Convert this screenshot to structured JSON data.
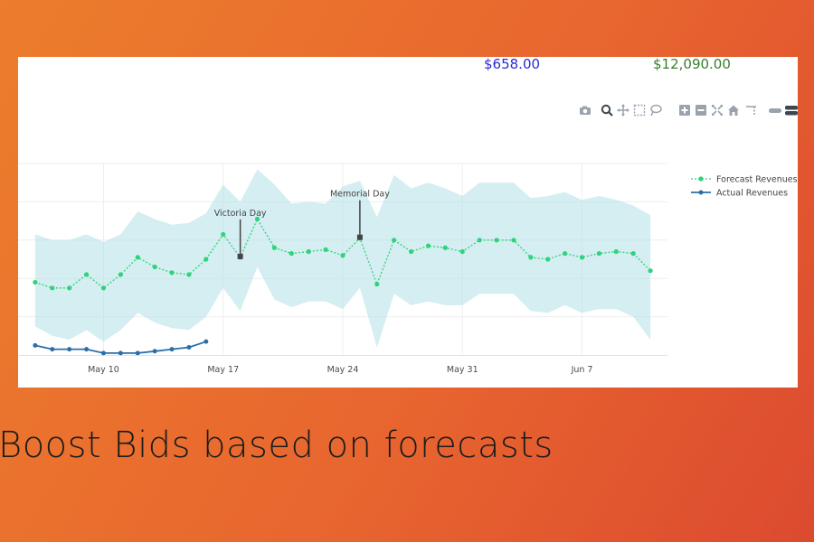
{
  "summary": {
    "amount_blue": "$658.00",
    "amount_green": "$12,090.00"
  },
  "toolbar": {
    "icons": [
      "camera-icon",
      "zoom-icon",
      "pan-icon",
      "box-select-icon",
      "lasso-select-icon",
      "zoom-in-icon",
      "zoom-out-icon",
      "autoscale-icon",
      "reset-axes-icon",
      "spike-lines-icon",
      "hover-closest-icon",
      "hover-compare-icon"
    ]
  },
  "caption": "Boost Bids based on forecasts",
  "colors": {
    "band": "#b8e3e8",
    "forecast": "#2ed37a",
    "actual": "#2b6fa8",
    "blue_amount": "#2a2ad6",
    "green_amount": "#3a7d2e"
  },
  "chart_data": {
    "type": "line",
    "x_ticks": [
      "May 10",
      "May 17",
      "May 24",
      "May 31",
      "Jun 7"
    ],
    "x_range": [
      "2020-05-05",
      "2020-06-12"
    ],
    "y_range": [
      0,
      50
    ],
    "grid": true,
    "legend_position": "top-right",
    "series": [
      {
        "name": "Forecast Revenues",
        "style": "dotted-markers",
        "x": [
          "2020-05-06",
          "2020-05-07",
          "2020-05-08",
          "2020-05-09",
          "2020-05-10",
          "2020-05-11",
          "2020-05-12",
          "2020-05-13",
          "2020-05-14",
          "2020-05-15",
          "2020-05-16",
          "2020-05-17",
          "2020-05-18",
          "2020-05-19",
          "2020-05-20",
          "2020-05-21",
          "2020-05-22",
          "2020-05-23",
          "2020-05-24",
          "2020-05-25",
          "2020-05-26",
          "2020-05-27",
          "2020-05-28",
          "2020-05-29",
          "2020-05-30",
          "2020-05-31",
          "2020-06-01",
          "2020-06-02",
          "2020-06-03",
          "2020-06-04",
          "2020-06-05",
          "2020-06-06",
          "2020-06-07",
          "2020-06-08",
          "2020-06-09",
          "2020-06-10",
          "2020-06-11"
        ],
        "y": [
          19.0,
          17.5,
          17.5,
          21.0,
          17.5,
          21.0,
          25.5,
          23.0,
          21.5,
          21.0,
          25.0,
          31.5,
          25.5,
          35.5,
          28.0,
          26.5,
          27.0,
          27.5,
          26.0,
          30.5,
          18.5,
          30.0,
          27.0,
          28.5,
          28.0,
          27.0,
          30.0,
          30.0,
          30.0,
          25.5,
          25.0,
          26.5,
          25.5,
          26.5,
          27.0,
          26.5,
          22.0
        ]
      },
      {
        "name": "Actual Revenues",
        "style": "solid-markers",
        "x": [
          "2020-05-06",
          "2020-05-07",
          "2020-05-08",
          "2020-05-09",
          "2020-05-10",
          "2020-05-11",
          "2020-05-12",
          "2020-05-13",
          "2020-05-14",
          "2020-05-15",
          "2020-05-16"
        ],
        "y": [
          2.5,
          1.5,
          1.5,
          1.5,
          0.5,
          0.5,
          0.5,
          1.0,
          1.5,
          2.0,
          3.5
        ]
      }
    ],
    "band": {
      "upper": [
        31.5,
        30.0,
        30.0,
        31.5,
        29.5,
        31.5,
        37.5,
        35.5,
        34.0,
        34.5,
        37.0,
        44.5,
        40.0,
        48.5,
        44.5,
        39.5,
        40.0,
        39.5,
        44.0,
        45.5,
        36.0,
        47.0,
        43.5,
        45.0,
        43.5,
        41.5,
        45.0,
        45.0,
        45.0,
        41.0,
        41.5,
        42.5,
        40.5,
        41.5,
        40.5,
        39.0,
        36.5
      ],
      "lower": [
        7.5,
        5.0,
        4.0,
        6.5,
        3.5,
        6.5,
        11.0,
        8.5,
        7.0,
        6.5,
        10.0,
        17.5,
        11.5,
        23.0,
        14.5,
        12.5,
        14.0,
        14.0,
        12.0,
        17.5,
        2.0,
        16.0,
        13.0,
        14.0,
        13.0,
        13.0,
        16.0,
        16.0,
        16.0,
        11.5,
        11.0,
        13.0,
        11.0,
        12.0,
        12.0,
        10.0,
        4.0
      ]
    },
    "annotations": [
      {
        "text": "Victoria Day",
        "x": "2020-05-18"
      },
      {
        "text": "Memorial Day",
        "x": "2020-05-25"
      }
    ]
  }
}
